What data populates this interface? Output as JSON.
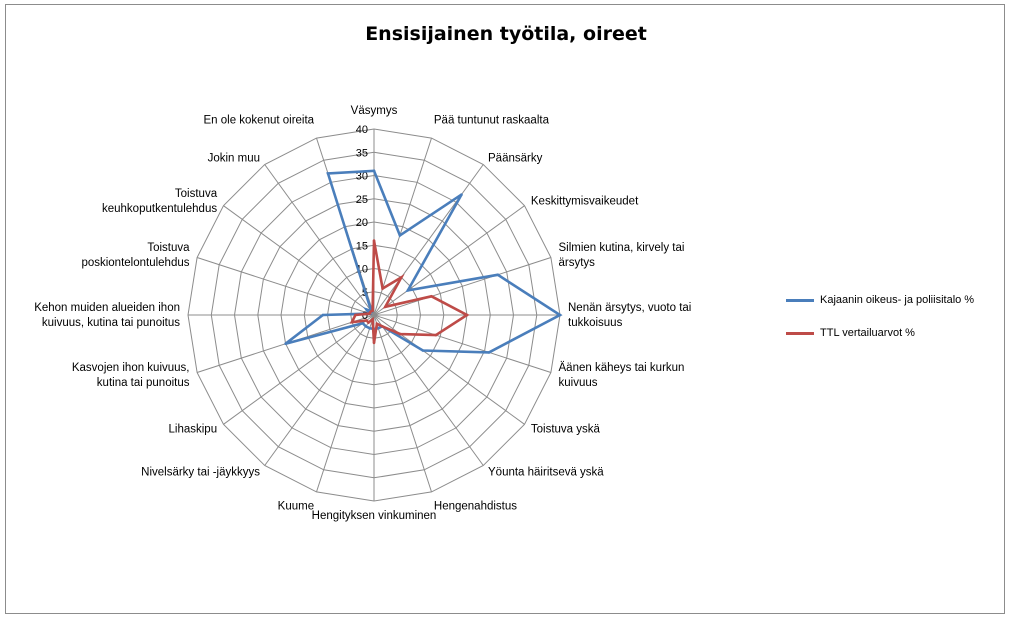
{
  "chart_data": {
    "type": "radar",
    "title": "Ensisijainen työtila, oireet",
    "rmax": 40,
    "rticks": [
      "0",
      "5",
      "10",
      "15",
      "20",
      "25",
      "30",
      "35",
      "40"
    ],
    "categories": [
      "Väsymys",
      "Pää tuntunut raskaalta",
      "Päänsärky",
      "Keskittymisvaikeudet",
      "Silmien kutina, kirvely tai ärsytys",
      "Nenän ärsytys, vuoto tai tukkoisuus",
      "Äänen käheys tai kurkun kuivuus",
      "Toistuva yskä",
      "Yöunta häiritsevä yskä",
      "Hengenahdistus",
      "Hengityksen vinkuminen",
      "Kuume",
      "Nivelsärky tai -jäykkyys",
      "Lihaskipu",
      "Kasvojen ihon kuivuus, kutina tai punoitus",
      "Kehon muiden alueiden ihon kuivuus, kutina tai punoitus",
      "Toistuva poskiontelontulehdus",
      "Toistuva keuhkoputkentulehdus",
      "Jokin muu",
      "En ole kokenut oireita"
    ],
    "category_lines": [
      [
        "Väsymys"
      ],
      [
        "Pää tuntunut raskaalta"
      ],
      [
        "Päänsärky"
      ],
      [
        "Keskittymisvaikeudet"
      ],
      [
        "Silmien kutina, kirvely tai",
        "ärsytys"
      ],
      [
        "Nenän ärsytys, vuoto tai",
        "tukkoisuus"
      ],
      [
        "Äänen käheys tai kurkun",
        "kuivuus"
      ],
      [
        "Toistuva yskä"
      ],
      [
        "Yöunta häiritsevä yskä"
      ],
      [
        "Hengenahdistus"
      ],
      [
        "Hengityksen vinkuminen"
      ],
      [
        "Kuume"
      ],
      [
        "Nivelsärky tai -jäykkyys"
      ],
      [
        "Lihaskipu"
      ],
      [
        "Kasvojen ihon kuivuus,",
        "kutina tai punoitus"
      ],
      [
        "Kehon muiden alueiden ihon",
        "kuivuus, kutina tai punoitus"
      ],
      [
        "Toistuva",
        "poskiontelontulehdus"
      ],
      [
        "Toistuva",
        "keuhkoputkentulehdus"
      ],
      [
        "Jokin muu"
      ],
      [
        "En ole kokenut oireita"
      ]
    ],
    "series": [
      {
        "name": "Kajaanin oikeus- ja poliisitalo %",
        "color": "#4a7ebb",
        "values": [
          31,
          18,
          32,
          9,
          28,
          40,
          26,
          13,
          3,
          3,
          3,
          3,
          3,
          3,
          20,
          11,
          1,
          2,
          1,
          32
        ]
      },
      {
        "name": "TTL vertailuarvot %",
        "color": "#be4b48",
        "values": [
          16,
          6,
          10,
          3,
          13,
          20,
          14,
          7,
          3,
          2,
          6,
          1,
          2,
          2,
          5,
          4,
          1,
          1,
          1,
          1
        ]
      }
    ],
    "grid": true,
    "legend": "right"
  }
}
